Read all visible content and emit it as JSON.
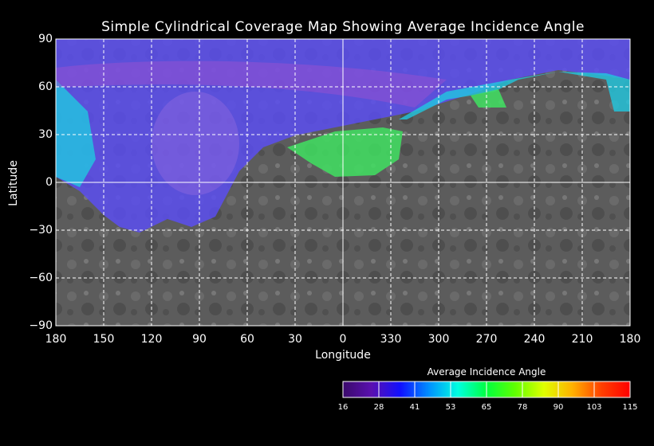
{
  "title": "Simple Cylindrical Coverage Map Showing Average Incidence Angle",
  "xaxis": {
    "label": "Longitude",
    "ticks": [
      "180",
      "150",
      "120",
      "90",
      "60",
      "30",
      "0",
      "330",
      "300",
      "270",
      "240",
      "210",
      "180"
    ]
  },
  "yaxis": {
    "label": "Latitude",
    "ticks": [
      "90",
      "60",
      "30",
      "0",
      "−30",
      "−60",
      "−90"
    ]
  },
  "colorbar": {
    "title": "Average Incidence Angle",
    "ticks": [
      "16",
      "28",
      "41",
      "53",
      "65",
      "78",
      "90",
      "103",
      "115"
    ],
    "colors": [
      "#3a0a6a",
      "#5a10b0",
      "#1010ff",
      "#0090ff",
      "#00ffe0",
      "#00ff40",
      "#60ff00",
      "#e0ff00",
      "#ffb000",
      "#ff4000",
      "#ff0000"
    ]
  },
  "colors": {
    "background": "#000000",
    "surface": "#5a5a5a",
    "grid": "#ffffff"
  }
}
